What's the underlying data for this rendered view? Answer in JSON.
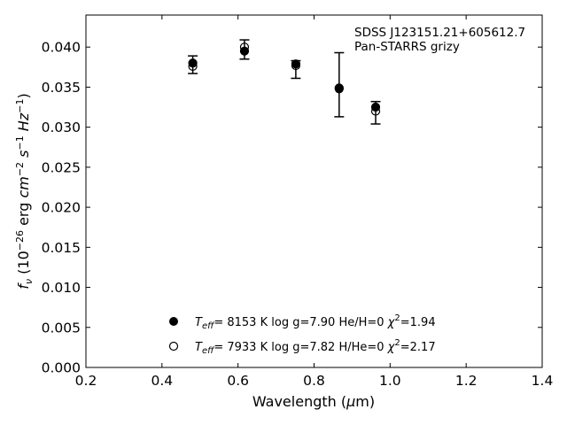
{
  "chart_data": {
    "type": "scatter",
    "xlabel": "Wavelength (μm)",
    "ylabel": "f_ν (10^-26 erg cm^-2 s^-1 Hz^-1)",
    "xlim": [
      0.2,
      1.4
    ],
    "ylim": [
      0.0,
      0.044
    ],
    "x_ticks": [
      "0.2",
      "0.4",
      "0.6",
      "0.8",
      "1.0",
      "1.2",
      "1.4"
    ],
    "y_ticks": [
      "0.000",
      "0.005",
      "0.010",
      "0.015",
      "0.020",
      "0.025",
      "0.030",
      "0.035",
      "0.040"
    ],
    "annotation": [
      "SDSS J123151.21+605612.7",
      "Pan-STARRS grizy"
    ],
    "observed": {
      "x": [
        0.481,
        0.617,
        0.752,
        0.866,
        0.962
      ],
      "y": [
        0.0378,
        0.0397,
        0.0372,
        0.0353,
        0.0318
      ],
      "err": [
        0.0011,
        0.0012,
        0.0011,
        0.004,
        0.0014
      ]
    },
    "series": [
      {
        "marker": "filled",
        "legend": {
          "teff": "8153 K",
          "logg": "log g=7.90",
          "comp": "He/H=0",
          "chi2": "=1.94"
        },
        "x": [
          0.481,
          0.617,
          0.752,
          0.866,
          0.962
        ],
        "y": [
          0.038,
          0.0395,
          0.0379,
          0.0348,
          0.0325
        ]
      },
      {
        "marker": "open",
        "legend": {
          "teff": "7933 K",
          "logg": "log g=7.82",
          "comp": "H/He=0",
          "chi2": "=2.17"
        },
        "x": [
          0.481,
          0.617,
          0.752,
          0.866,
          0.962
        ],
        "y": [
          0.0376,
          0.04,
          0.0377,
          0.0349,
          0.032
        ]
      }
    ],
    "grid": false,
    "legend_position": "bottom-center"
  }
}
